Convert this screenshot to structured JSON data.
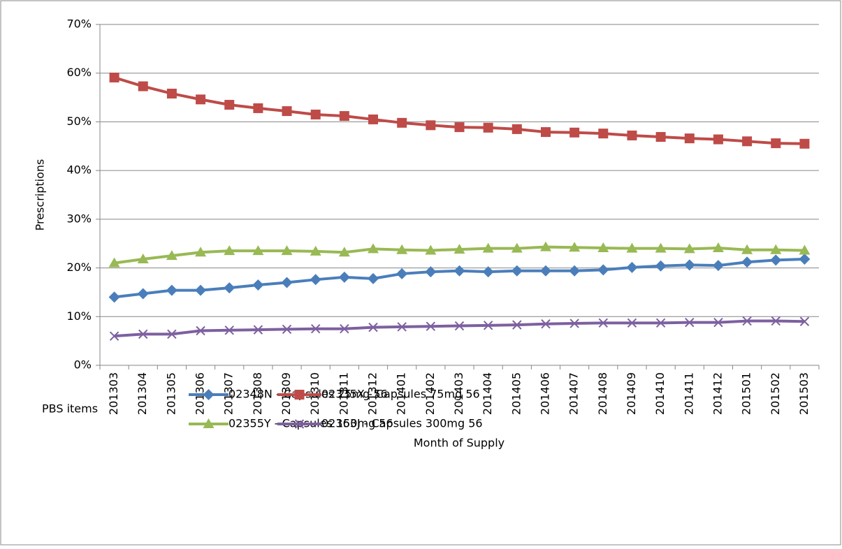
{
  "chart_data": {
    "type": "line",
    "x_label": "Month of Supply",
    "y_label": "Prescriptions",
    "categories": [
      "201303",
      "201304",
      "201305",
      "201306",
      "201307",
      "201308",
      "201309",
      "201310",
      "201311",
      "201312",
      "201401",
      "201402",
      "201403",
      "201404",
      "201405",
      "201406",
      "201407",
      "201408",
      "201409",
      "201410",
      "201411",
      "201412",
      "201501",
      "201502",
      "201503"
    ],
    "series": [
      {
        "name": "02348N - Capsules 25mg 56",
        "color": "#4a7ebb",
        "marker": "diamond",
        "values": [
          14.0,
          14.7,
          15.4,
          15.4,
          15.9,
          16.5,
          17.0,
          17.6,
          18.1,
          17.8,
          18.8,
          19.2,
          19.4,
          19.2,
          19.4,
          19.4,
          19.4,
          19.6,
          20.1,
          20.4,
          20.6,
          20.5,
          21.2,
          21.6,
          21.8
        ]
      },
      {
        "name": "02335X - Capsules 75mg 56",
        "color": "#be4b48",
        "marker": "square",
        "values": [
          59.1,
          57.3,
          55.8,
          54.6,
          53.5,
          52.8,
          52.2,
          51.5,
          51.2,
          50.5,
          49.8,
          49.3,
          48.9,
          48.8,
          48.5,
          47.9,
          47.8,
          47.6,
          47.2,
          46.9,
          46.6,
          46.4,
          46.0,
          45.6,
          45.5
        ]
      },
      {
        "name": "02355Y - Capsules 150mg 56",
        "color": "#98b954",
        "marker": "triangle",
        "values": [
          21.0,
          21.8,
          22.5,
          23.2,
          23.5,
          23.5,
          23.5,
          23.4,
          23.2,
          23.9,
          23.7,
          23.6,
          23.8,
          24.0,
          24.0,
          24.3,
          24.2,
          24.1,
          24.0,
          24.0,
          23.9,
          24.1,
          23.7,
          23.7,
          23.6
        ]
      },
      {
        "name": "02363J - Capsules 300mg 56",
        "color": "#7d60a0",
        "marker": "x",
        "values": [
          6.0,
          6.4,
          6.4,
          7.1,
          7.2,
          7.3,
          7.4,
          7.5,
          7.5,
          7.8,
          7.9,
          8.0,
          8.1,
          8.2,
          8.3,
          8.5,
          8.6,
          8.7,
          8.7,
          8.7,
          8.8,
          8.8,
          9.1,
          9.1,
          9.0
        ]
      }
    ],
    "ylim": [
      0,
      70
    ],
    "yticks": [
      {
        "value": 0,
        "label": "0%"
      },
      {
        "value": 10,
        "label": "10%"
      },
      {
        "value": 20,
        "label": "20%"
      },
      {
        "value": 30,
        "label": "30%"
      },
      {
        "value": 40,
        "label": "40%"
      },
      {
        "value": 50,
        "label": "50%"
      },
      {
        "value": 60,
        "label": "60%"
      },
      {
        "value": 70,
        "label": "70%"
      }
    ],
    "grid": true,
    "legend": "bottom",
    "legend_title": "PBS items"
  }
}
